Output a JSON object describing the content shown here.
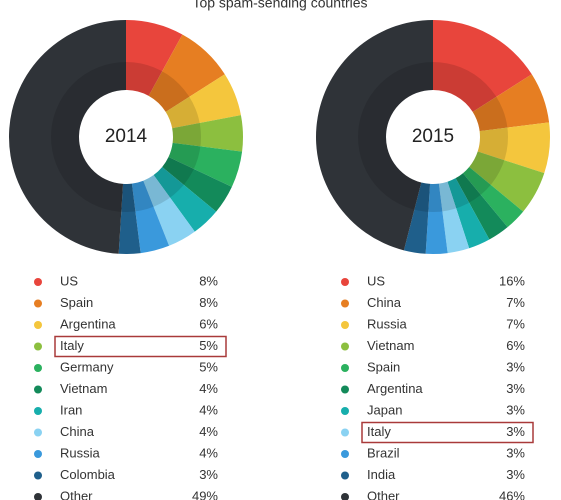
{
  "title": "Top spam-sending countries",
  "chart_data": [
    {
      "type": "pie",
      "title": "2014",
      "categories": [
        "US",
        "Spain",
        "Argentina",
        "Italy",
        "Germany",
        "Vietnam",
        "Iran",
        "China",
        "Russia",
        "Colombia",
        "Other"
      ],
      "values": [
        8,
        8,
        6,
        5,
        5,
        4,
        4,
        4,
        4,
        3,
        49
      ],
      "value_labels": [
        "8%",
        "8%",
        "6%",
        "5%",
        "5%",
        "4%",
        "4%",
        "4%",
        "4%",
        "3%",
        "49%"
      ],
      "colors": [
        "#e8453c",
        "#e67e22",
        "#f4c63d",
        "#8cbf3f",
        "#2bb15f",
        "#138a5a",
        "#17aeac",
        "#8ad2f2",
        "#3a99dc",
        "#1f5f8b",
        "#2f3338"
      ],
      "highlight": 3
    },
    {
      "type": "pie",
      "title": "2015",
      "categories": [
        "US",
        "China",
        "Russia",
        "Vietnam",
        "Spain",
        "Argentina",
        "Japan",
        "Italy",
        "Brazil",
        "India",
        "Other"
      ],
      "values": [
        16,
        7,
        7,
        6,
        3,
        3,
        3,
        3,
        3,
        3,
        46
      ],
      "value_labels": [
        "16%",
        "7%",
        "7%",
        "6%",
        "3%",
        "3%",
        "3%",
        "3%",
        "3%",
        "3%",
        "46%"
      ],
      "colors": [
        "#e8453c",
        "#e67e22",
        "#f4c63d",
        "#8cbf3f",
        "#2bb15f",
        "#138a5a",
        "#17aeac",
        "#8ad2f2",
        "#3a99dc",
        "#1f5f8b",
        "#2f3338"
      ],
      "highlight": 7
    }
  ]
}
